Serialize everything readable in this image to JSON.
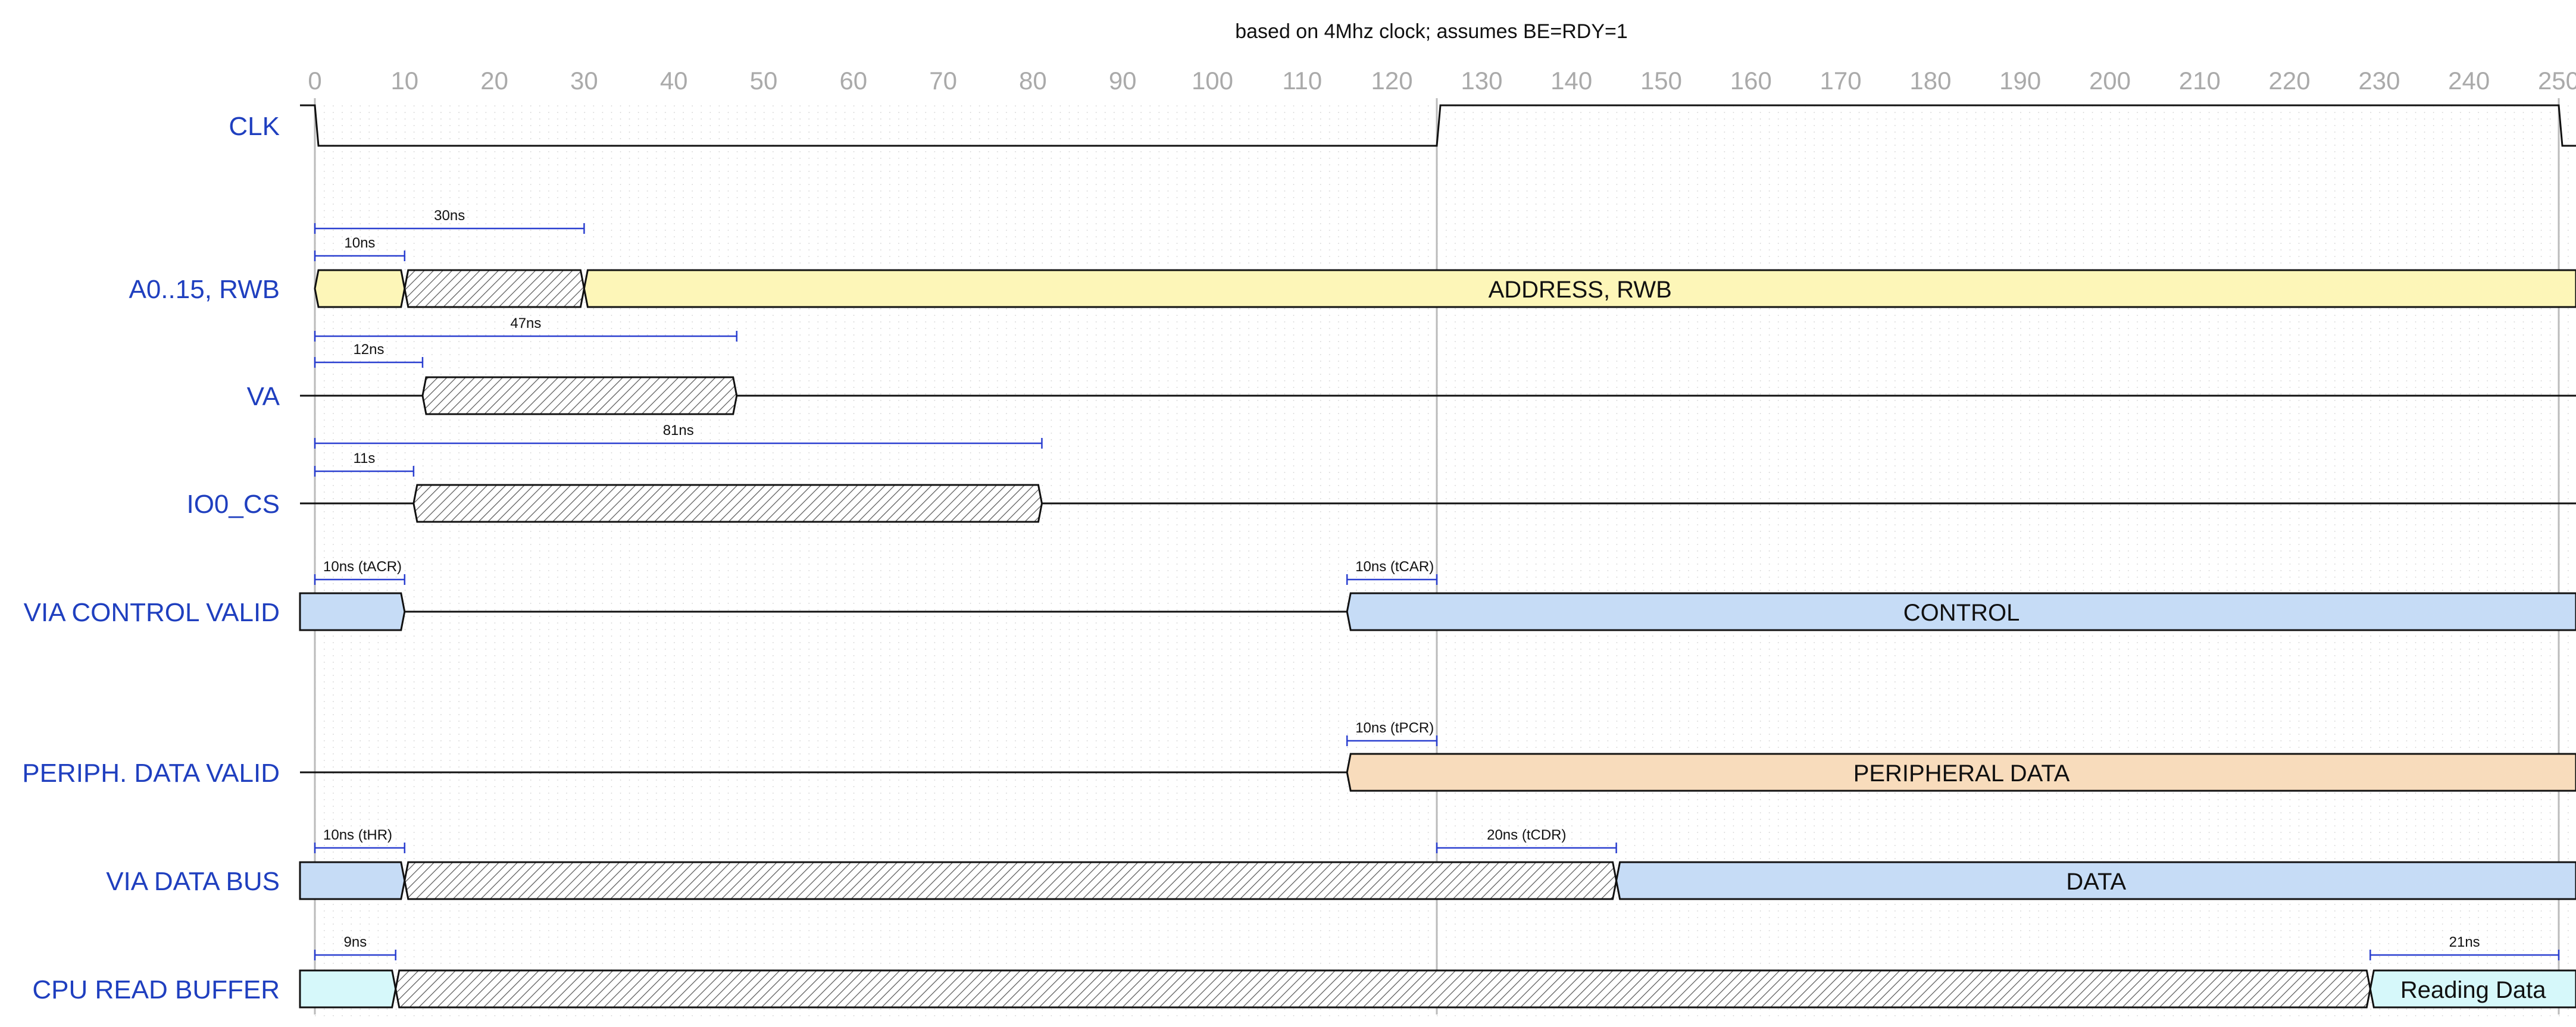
{
  "title": "based on 4Mhz clock; assumes BE=RDY=1",
  "time_axis": {
    "ticks": [
      0,
      10,
      20,
      30,
      40,
      50,
      60,
      70,
      80,
      90,
      100,
      110,
      120,
      130,
      140,
      150,
      160,
      170,
      180,
      190,
      200,
      210,
      220,
      230,
      240,
      250
    ],
    "unit": "ns",
    "range": [
      0,
      250
    ],
    "major_gridlines": [
      0,
      125,
      250
    ]
  },
  "colors": {
    "label": "#1f3fbf",
    "measure": "#2a3fd0",
    "address": "#fdf6b8",
    "control": "#c6dcf6",
    "peripheral": "#f8dcbc",
    "buffer": "#d6f8fa",
    "grid_major": "#bbbbbb",
    "tick": "#aaaaaa"
  },
  "signals": [
    {
      "name": "CLK",
      "type": "clock",
      "transitions": [
        0,
        125,
        250
      ]
    },
    {
      "name": "A0..15, RWB",
      "type": "bus",
      "segments": [
        {
          "from": 0,
          "to": 10,
          "kind": "fill",
          "color": "address",
          "text": ""
        },
        {
          "from": 10,
          "to": 30,
          "kind": "hatch",
          "text": ""
        },
        {
          "from": 30,
          "to": 252,
          "kind": "fill",
          "color": "address",
          "text": "ADDRESS, RWB"
        }
      ],
      "measures": [
        {
          "from": 0,
          "to": 10,
          "label": "10ns"
        },
        {
          "from": 0,
          "to": 30,
          "label": "30ns"
        }
      ]
    },
    {
      "name": "VA",
      "type": "bus",
      "segments": [
        {
          "from": -2,
          "to": 12,
          "kind": "line"
        },
        {
          "from": 12,
          "to": 47,
          "kind": "hatch",
          "text": ""
        },
        {
          "from": 47,
          "to": 252,
          "kind": "line"
        }
      ],
      "measures": [
        {
          "from": 0,
          "to": 12,
          "label": "12ns"
        },
        {
          "from": 0,
          "to": 47,
          "label": "47ns"
        }
      ]
    },
    {
      "name": "IO0_CS",
      "type": "bus",
      "segments": [
        {
          "from": -2,
          "to": 11,
          "kind": "line"
        },
        {
          "from": 11,
          "to": 81,
          "kind": "hatch",
          "text": ""
        },
        {
          "from": 81,
          "to": 252,
          "kind": "line"
        }
      ],
      "measures": [
        {
          "from": 0,
          "to": 11,
          "label": "11s"
        },
        {
          "from": 0,
          "to": 81,
          "label": "81ns"
        }
      ]
    },
    {
      "name": "VIA CONTROL VALID",
      "type": "bus",
      "segments": [
        {
          "from": -2,
          "to": 10,
          "kind": "fill",
          "color": "control",
          "text": ""
        },
        {
          "from": 10,
          "to": 115,
          "kind": "line"
        },
        {
          "from": 115,
          "to": 252,
          "kind": "fill",
          "color": "control",
          "text": "CONTROL"
        }
      ],
      "measures": [
        {
          "from": 0,
          "to": 10,
          "label": "10ns (tACR)"
        },
        {
          "from": 115,
          "to": 125,
          "label": "10ns (tCAR)"
        }
      ]
    },
    {
      "name": "PERIPH. DATA VALID",
      "type": "bus",
      "segments": [
        {
          "from": -2,
          "to": 115,
          "kind": "line"
        },
        {
          "from": 115,
          "to": 252,
          "kind": "fill",
          "color": "peripheral",
          "text": "PERIPHERAL DATA"
        }
      ],
      "measures": [
        {
          "from": 115,
          "to": 125,
          "label": "10ns (tPCR)"
        }
      ]
    },
    {
      "name": "VIA DATA BUS",
      "type": "bus",
      "segments": [
        {
          "from": -2,
          "to": 10,
          "kind": "fill",
          "color": "control",
          "text": ""
        },
        {
          "from": 10,
          "to": 145,
          "kind": "hatch",
          "text": ""
        },
        {
          "from": 145,
          "to": 252,
          "kind": "fill",
          "color": "control",
          "text": "DATA"
        }
      ],
      "measures": [
        {
          "from": 0,
          "to": 10,
          "label": "10ns (tHR)"
        },
        {
          "from": 125,
          "to": 145,
          "label": "20ns (tCDR)"
        }
      ]
    },
    {
      "name": "CPU READ BUFFER",
      "type": "bus",
      "segments": [
        {
          "from": -2,
          "to": 9,
          "kind": "fill",
          "color": "buffer",
          "text": ""
        },
        {
          "from": 9,
          "to": 229,
          "kind": "hatch",
          "text": ""
        },
        {
          "from": 229,
          "to": 252,
          "kind": "fill",
          "color": "buffer",
          "text": "Reading Data"
        }
      ],
      "measures": [
        {
          "from": 0,
          "to": 9,
          "label": "9ns"
        },
        {
          "from": 229,
          "to": 250,
          "label": "21ns"
        }
      ]
    }
  ]
}
